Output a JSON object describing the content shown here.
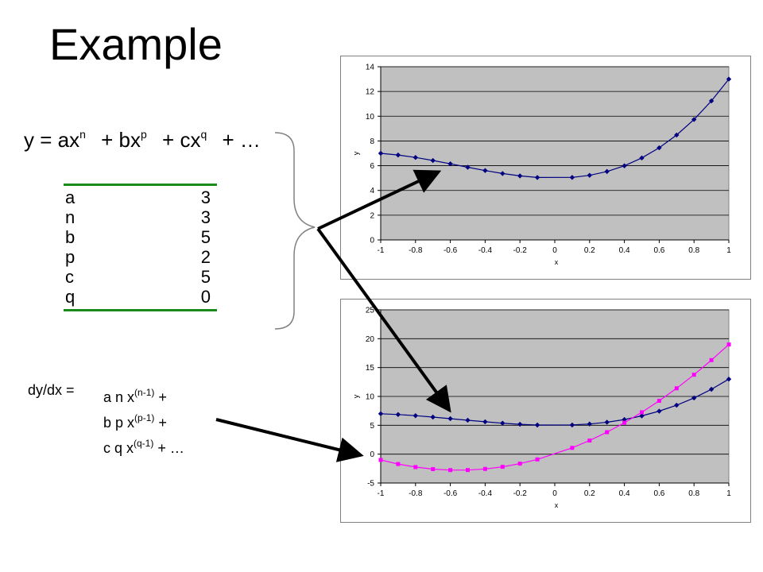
{
  "title": "Example",
  "equation": {
    "t1_base": "y = ax",
    "t1_sup": "n",
    "t2_base": "+ bx",
    "t2_sup": "p",
    "t3_base": "+ cx",
    "t3_sup": "q",
    "t4": "+ …"
  },
  "params": [
    {
      "name": "a",
      "value": "3"
    },
    {
      "name": "n",
      "value": "3"
    },
    {
      "name": "b",
      "value": "5"
    },
    {
      "name": "p",
      "value": "2"
    },
    {
      "name": "c",
      "value": "5"
    },
    {
      "name": "q",
      "value": "0"
    }
  ],
  "derivative": {
    "label": "dy/dx =",
    "line1_base": "a n x",
    "line1_sup": "(n-1)",
    "line1_tail": " +",
    "line2_base": "b p x",
    "line2_sup": "(p-1)",
    "line2_tail": " +",
    "line3_base": "c q x",
    "line3_sup": "(q-1)",
    "line3_tail": " + …"
  },
  "colors": {
    "plot_bg": "#c0c0c0",
    "series_y": "#000080",
    "series_dy": "#ff00ff",
    "table_rule": "#1a8a1a"
  },
  "chart_data": [
    {
      "type": "line",
      "xlabel": "x",
      "ylabel": "y",
      "xlim": [
        -1,
        1
      ],
      "ylim": [
        0,
        14
      ],
      "xticks": [
        "-1",
        "-0.8",
        "-0.6",
        "-0.4",
        "-0.2",
        "0",
        "0.2",
        "0.4",
        "0.6",
        "0.8",
        "1"
      ],
      "yticks": [
        "0",
        "2",
        "4",
        "6",
        "8",
        "10",
        "12",
        "14"
      ],
      "grid": "horizontal",
      "series": [
        {
          "color": "#000080",
          "marker": "diamond",
          "x": [
            -1,
            -0.9,
            -0.8,
            -0.7,
            -0.6,
            -0.5,
            -0.4,
            -0.3,
            -0.2,
            -0.1,
            0.1,
            0.2,
            0.3,
            0.4,
            0.5,
            0.6,
            0.7,
            0.8,
            0.9,
            1
          ],
          "y": [
            7,
            6.863,
            6.664,
            6.421,
            6.152,
            5.875,
            5.608,
            5.369,
            5.176,
            5.047,
            5.053,
            5.224,
            5.531,
            5.992,
            6.625,
            7.448,
            8.479,
            9.736,
            11.237,
            13
          ]
        }
      ]
    },
    {
      "type": "line",
      "xlabel": "x",
      "ylabel": "y",
      "xlim": [
        -1,
        1
      ],
      "ylim": [
        -5,
        25
      ],
      "xticks": [
        "-1",
        "-0.8",
        "-0.6",
        "-0.4",
        "-0.2",
        "0",
        "0.2",
        "0.4",
        "0.6",
        "0.8",
        "1"
      ],
      "yticks": [
        "-5",
        "0",
        "5",
        "10",
        "15",
        "20",
        "25"
      ],
      "grid": "horizontal",
      "series": [
        {
          "color": "#000080",
          "marker": "diamond",
          "x": [
            -1,
            -0.9,
            -0.8,
            -0.7,
            -0.6,
            -0.5,
            -0.4,
            -0.3,
            -0.2,
            -0.1,
            0.1,
            0.2,
            0.3,
            0.4,
            0.5,
            0.6,
            0.7,
            0.8,
            0.9,
            1
          ],
          "y": [
            7,
            6.863,
            6.664,
            6.421,
            6.152,
            5.875,
            5.608,
            5.369,
            5.176,
            5.047,
            5.053,
            5.224,
            5.531,
            5.992,
            6.625,
            7.448,
            8.479,
            9.736,
            11.237,
            13
          ]
        },
        {
          "color": "#ff00ff",
          "marker": "square",
          "x": [
            -1,
            -0.9,
            -0.8,
            -0.7,
            -0.6,
            -0.5,
            -0.4,
            -0.3,
            -0.2,
            -0.1,
            0.1,
            0.2,
            0.3,
            0.4,
            0.5,
            0.6,
            0.7,
            0.8,
            0.9,
            1
          ],
          "y": [
            -1,
            -1.71,
            -2.24,
            -2.59,
            -2.76,
            -2.75,
            -2.56,
            -2.19,
            -1.64,
            -0.91,
            1.09,
            2.36,
            3.81,
            5.44,
            7.25,
            9.24,
            11.41,
            13.76,
            16.29,
            19
          ]
        }
      ]
    }
  ]
}
